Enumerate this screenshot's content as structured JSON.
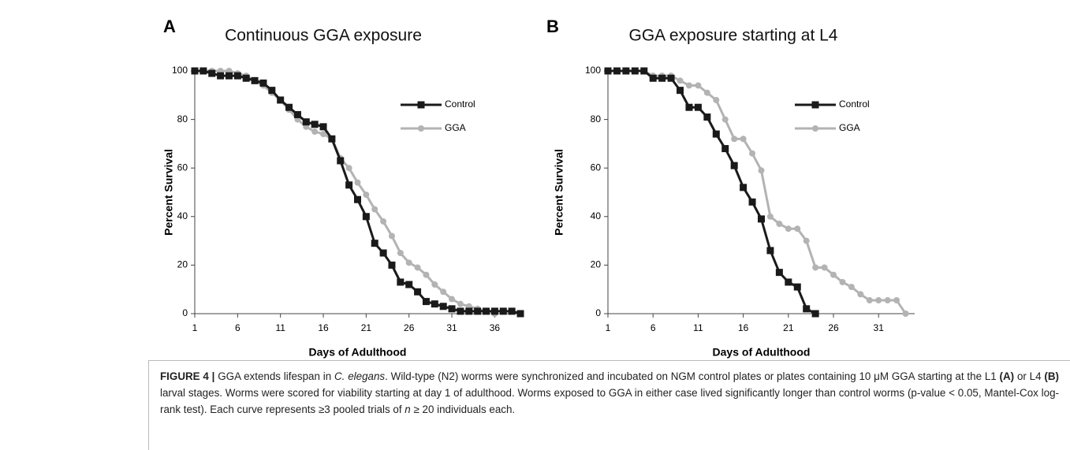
{
  "chart_data": [
    {
      "type": "line",
      "label": "A",
      "title": "Continuous GGA exposure",
      "xlabel": "Days of Adulthood",
      "ylabel": "Percent Survival",
      "x": [
        1,
        2,
        3,
        4,
        5,
        6,
        7,
        8,
        9,
        10,
        11,
        12,
        13,
        14,
        15,
        16,
        17,
        18,
        19,
        20,
        21,
        22,
        23,
        24,
        25,
        26,
        27,
        28,
        29,
        30,
        31,
        32,
        33,
        34,
        35,
        36,
        37,
        38,
        39
      ],
      "xlim": [
        1,
        39
      ],
      "xticks": [
        1,
        6,
        11,
        16,
        21,
        26,
        31,
        36
      ],
      "ylim": [
        0,
        100
      ],
      "yticks": [
        0,
        20,
        40,
        60,
        80,
        100
      ],
      "legend": "upper right",
      "series": [
        {
          "name": "Control",
          "color": "#1a1a1a",
          "marker": "square",
          "values": [
            100,
            100,
            99,
            98,
            98,
            98,
            97,
            96,
            95,
            92,
            88,
            85,
            82,
            79,
            78,
            77,
            72,
            63,
            53,
            47,
            40,
            29,
            25,
            20,
            13,
            12,
            9,
            5,
            4,
            3,
            2,
            1,
            1,
            1,
            1,
            1,
            1,
            1,
            0
          ]
        },
        {
          "name": "GGA",
          "color": "#b3b3b3",
          "marker": "circle",
          "values": [
            100,
            100,
            100,
            100,
            100,
            99,
            98,
            96,
            94,
            91,
            88,
            84,
            80,
            77,
            75,
            74,
            72,
            64,
            60,
            54,
            49,
            43,
            38,
            32,
            25,
            21,
            19,
            16,
            12,
            9,
            6,
            4,
            3,
            2,
            1,
            0,
            null,
            null,
            null
          ]
        }
      ]
    },
    {
      "type": "line",
      "label": "B",
      "title": "GGA exposure starting at L4",
      "xlabel": "Days of Adulthood",
      "ylabel": "Percent Survival",
      "x": [
        1,
        2,
        3,
        4,
        5,
        6,
        7,
        8,
        9,
        10,
        11,
        12,
        13,
        14,
        15,
        16,
        17,
        18,
        19,
        20,
        21,
        22,
        23,
        24,
        25,
        26,
        27,
        28,
        29,
        30,
        31,
        32,
        33,
        34
      ],
      "xlim": [
        1,
        35
      ],
      "xticks": [
        1,
        6,
        11,
        16,
        21,
        26,
        31
      ],
      "ylim": [
        0,
        100
      ],
      "yticks": [
        0,
        20,
        40,
        60,
        80,
        100
      ],
      "legend": "upper right",
      "series": [
        {
          "name": "Control",
          "color": "#1a1a1a",
          "marker": "square",
          "values": [
            100,
            100,
            100,
            100,
            100,
            97,
            97,
            97,
            92,
            85,
            85,
            81,
            74,
            68,
            61,
            52,
            46,
            39,
            26,
            17,
            13,
            11,
            2,
            0,
            null,
            null,
            null,
            null,
            null,
            null,
            null,
            null,
            null,
            null
          ]
        },
        {
          "name": "GGA",
          "color": "#b3b3b3",
          "marker": "circle",
          "values": [
            100,
            100,
            100,
            100,
            100,
            98,
            98,
            98,
            96,
            94,
            94,
            91,
            88,
            80,
            72,
            72,
            66,
            59,
            40,
            37,
            35,
            35,
            30,
            19,
            19,
            16,
            13,
            11,
            8,
            5.5,
            5.5,
            5.5,
            5.5,
            0
          ]
        }
      ]
    }
  ],
  "caption": [
    "FIGURE 4 |",
    " GGA extends lifespan in ",
    "C. elegans",
    ". Wild-type (N2) worms were synchronized and incubated on NGM control plates or plates containing 10 μM GGA starting at the L1 ",
    "(A)",
    " or L4 ",
    "(B)",
    " larval stages. Worms were scored for viability starting at day 1 of adulthood. Worms exposed to GGA in either case lived significantly longer than control worms (p-value < 0.05, Mantel-Cox log-rank test). Each curve represents ≥3 pooled trials of ",
    "n",
    " ≥ 20 individuals each."
  ]
}
